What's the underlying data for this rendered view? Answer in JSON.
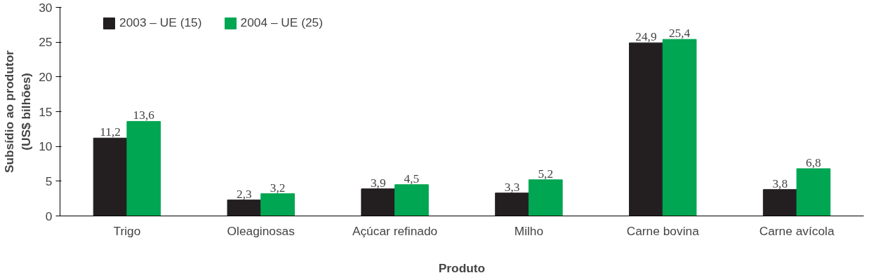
{
  "chart_data": {
    "type": "bar",
    "xlabel": "Produto",
    "ylabel": "Subsídio ao produtor\n(US$ bilhões)",
    "categories": [
      "Trigo",
      "Oleaginosas",
      "Açúcar refinado",
      "Milho",
      "Carne bovina",
      "Carne avícola"
    ],
    "series": [
      {
        "name": "2003 – UE (15)",
        "color": "#231f20",
        "values": [
          11.2,
          2.3,
          3.9,
          3.3,
          24.9,
          3.8
        ],
        "value_labels": [
          "11,2",
          "2,3",
          "3,9",
          "3,3",
          "24,9",
          "3,8"
        ]
      },
      {
        "name": "2004 – UE (25)",
        "color": "#00a651",
        "values": [
          13.6,
          3.2,
          4.5,
          5.2,
          25.4,
          6.8
        ],
        "value_labels": [
          "13,6",
          "3,2",
          "4,5",
          "5,2",
          "25,4",
          "6,8"
        ]
      }
    ],
    "ylim": [
      0,
      30
    ],
    "yticks": [
      0,
      5,
      10,
      15,
      20,
      25,
      30
    ],
    "grid": false,
    "legend": "top left"
  }
}
